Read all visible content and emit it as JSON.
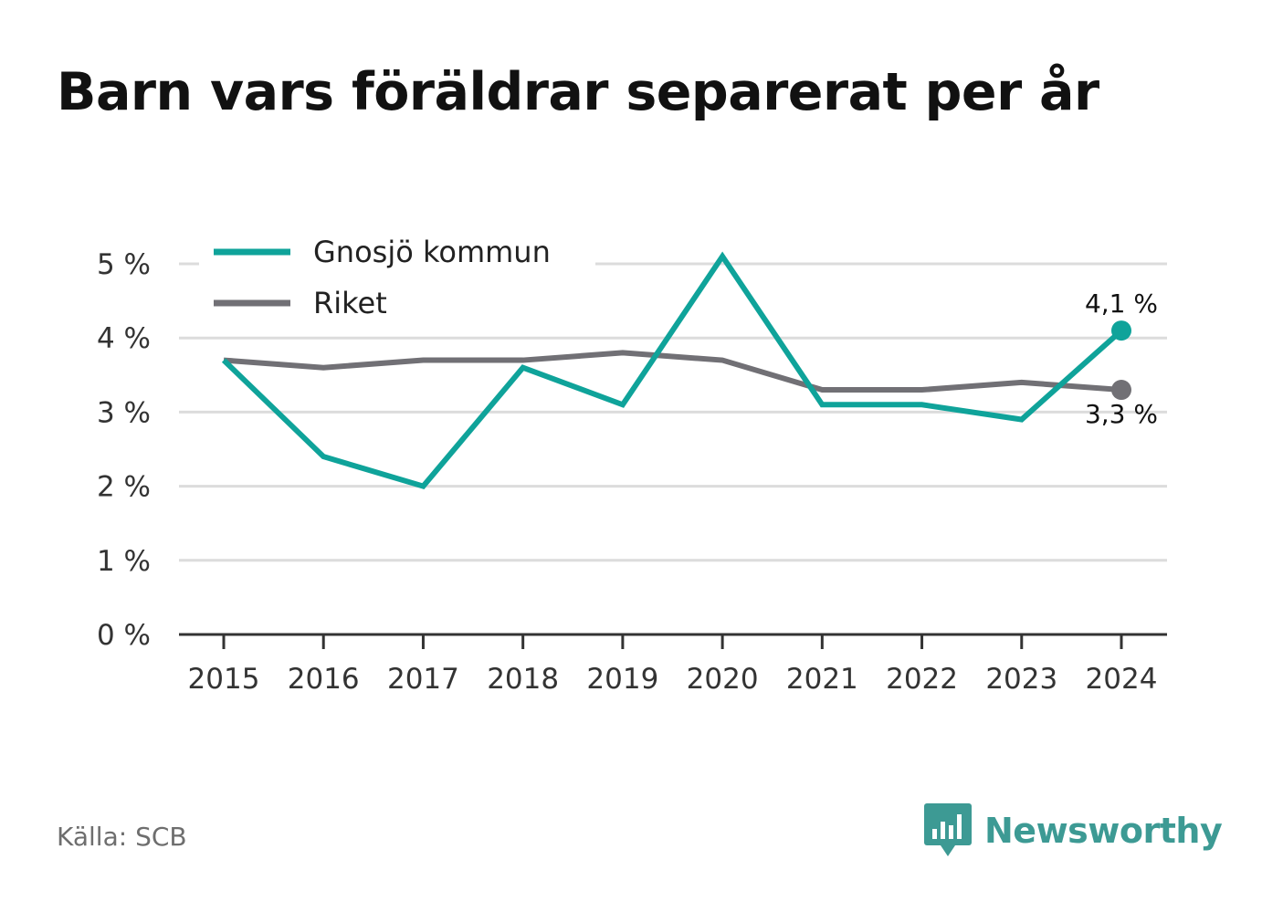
{
  "title": "Barn vars föräldrar separerat per år",
  "source": "Källa: SCB",
  "brand": {
    "name": "Newsworthy",
    "icon": "bar-chart-speech-bubble-icon",
    "color": "#3d9a94"
  },
  "colors": {
    "gnosjo": "#0fa39a",
    "riket": "#717075",
    "grid": "#dcdcdc",
    "axis": "#333333"
  },
  "chart_data": {
    "type": "line",
    "title": "Barn vars föräldrar separerat per år",
    "x": [
      "2015",
      "2016",
      "2017",
      "2018",
      "2019",
      "2020",
      "2021",
      "2022",
      "2023",
      "2024"
    ],
    "ylim": [
      0,
      5
    ],
    "yticks": [
      0,
      1,
      2,
      3,
      4,
      5
    ],
    "ytick_labels": [
      "0 %",
      "1 %",
      "2 %",
      "3 %",
      "4 %",
      "5 %"
    ],
    "grid": true,
    "legend_position": "top-left",
    "series": [
      {
        "name": "Gnosjö kommun",
        "color": "#0fa39a",
        "values": [
          3.7,
          2.4,
          2.0,
          3.6,
          3.1,
          5.1,
          3.1,
          3.1,
          2.9,
          4.1
        ],
        "end_label": "4,1 %"
      },
      {
        "name": "Riket",
        "color": "#717075",
        "values": [
          3.7,
          3.6,
          3.7,
          3.7,
          3.8,
          3.7,
          3.3,
          3.3,
          3.4,
          3.3
        ],
        "end_label": "3,3 %"
      }
    ]
  }
}
